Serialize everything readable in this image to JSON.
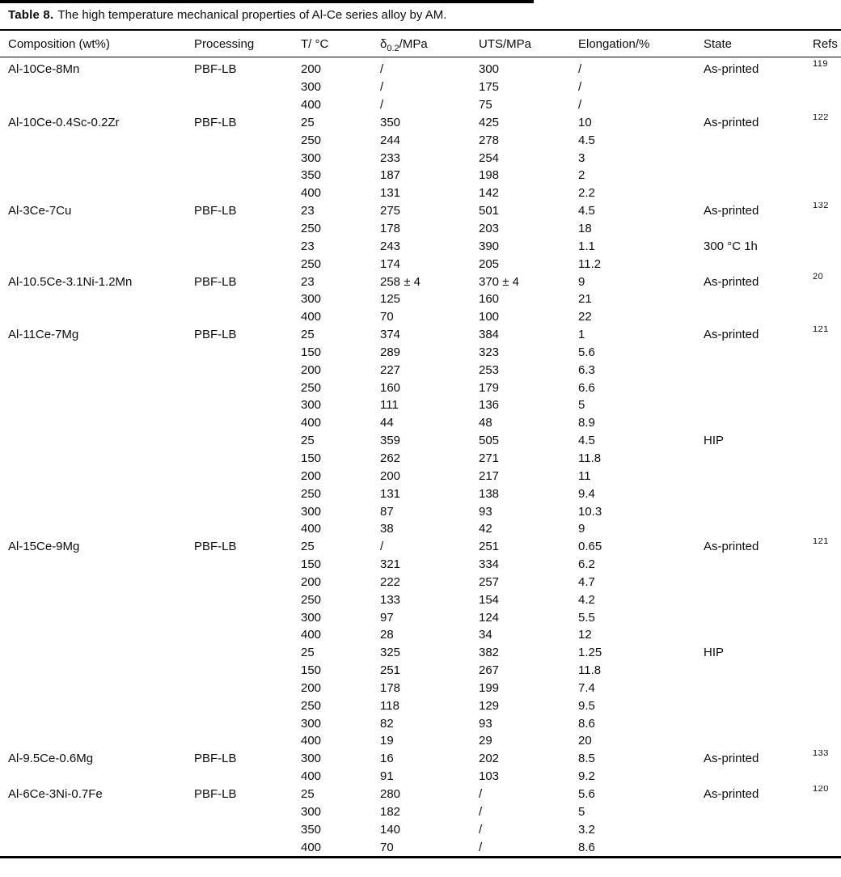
{
  "colors": {
    "background": "#ffffff",
    "text": "#0d0d0d",
    "rule": "#000000"
  },
  "caption": {
    "label": "Table 8.",
    "text": "The high temperature mechanical properties of Al-Ce series alloy by AM."
  },
  "columns": [
    {
      "label": "Composition (wt%)"
    },
    {
      "label": "Processing"
    },
    {
      "label": "T/ °C"
    },
    {
      "pre": "δ",
      "sub": "0.2",
      "post": "/MPa"
    },
    {
      "label": "UTS/MPa"
    },
    {
      "label": "Elongation/%"
    },
    {
      "label": "State"
    },
    {
      "label": "Refs"
    }
  ],
  "rows": [
    {
      "composition": "Al-10Ce-8Mn",
      "processing": "PBF-LB",
      "t": "200",
      "sigma": "/",
      "uts": "300",
      "elongation": "/",
      "state": "As-printed",
      "ref": "119"
    },
    {
      "composition": "",
      "processing": "",
      "t": "300",
      "sigma": "/",
      "uts": "175",
      "elongation": "/",
      "state": "",
      "ref": ""
    },
    {
      "composition": "",
      "processing": "",
      "t": "400",
      "sigma": "/",
      "uts": "75",
      "elongation": "/",
      "state": "",
      "ref": ""
    },
    {
      "composition": "Al-10Ce-0.4Sc-0.2Zr",
      "processing": "PBF-LB",
      "t": "25",
      "sigma": "350",
      "uts": "425",
      "elongation": "10",
      "state": "As-printed",
      "ref": "122"
    },
    {
      "composition": "",
      "processing": "",
      "t": "250",
      "sigma": "244",
      "uts": "278",
      "elongation": "4.5",
      "state": "",
      "ref": ""
    },
    {
      "composition": "",
      "processing": "",
      "t": "300",
      "sigma": "233",
      "uts": "254",
      "elongation": "3",
      "state": "",
      "ref": ""
    },
    {
      "composition": "",
      "processing": "",
      "t": "350",
      "sigma": "187",
      "uts": "198",
      "elongation": "2",
      "state": "",
      "ref": ""
    },
    {
      "composition": "",
      "processing": "",
      "t": "400",
      "sigma": "131",
      "uts": "142",
      "elongation": "2.2",
      "state": "",
      "ref": ""
    },
    {
      "composition": "Al-3Ce-7Cu",
      "processing": "PBF-LB",
      "t": "23",
      "sigma": "275",
      "uts": "501",
      "elongation": "4.5",
      "state": "As-printed",
      "ref": "132"
    },
    {
      "composition": "",
      "processing": "",
      "t": "250",
      "sigma": "178",
      "uts": "203",
      "elongation": "18",
      "state": "",
      "ref": ""
    },
    {
      "composition": "",
      "processing": "",
      "t": "23",
      "sigma": "243",
      "uts": "390",
      "elongation": "1.1",
      "state": "300 °C 1h",
      "ref": ""
    },
    {
      "composition": "",
      "processing": "",
      "t": "250",
      "sigma": "174",
      "uts": "205",
      "elongation": "11.2",
      "state": "",
      "ref": ""
    },
    {
      "composition": "Al-10.5Ce-3.1Ni-1.2Mn",
      "processing": "PBF-LB",
      "t": "23",
      "sigma": "258 ± 4",
      "uts": "370 ± 4",
      "elongation": "9",
      "state": "As-printed",
      "ref": "20"
    },
    {
      "composition": "",
      "processing": "",
      "t": "300",
      "sigma": "125",
      "uts": "160",
      "elongation": "21",
      "state": "",
      "ref": ""
    },
    {
      "composition": "",
      "processing": "",
      "t": "400",
      "sigma": "70",
      "uts": "100",
      "elongation": "22",
      "state": "",
      "ref": ""
    },
    {
      "composition": "Al-11Ce-7Mg",
      "processing": "PBF-LB",
      "t": "25",
      "sigma": "374",
      "uts": "384",
      "elongation": "1",
      "state": "As-printed",
      "ref": "121"
    },
    {
      "composition": "",
      "processing": "",
      "t": "150",
      "sigma": "289",
      "uts": "323",
      "elongation": "5.6",
      "state": "",
      "ref": ""
    },
    {
      "composition": "",
      "processing": "",
      "t": "200",
      "sigma": "227",
      "uts": "253",
      "elongation": "6.3",
      "state": "",
      "ref": ""
    },
    {
      "composition": "",
      "processing": "",
      "t": "250",
      "sigma": "160",
      "uts": "179",
      "elongation": "6.6",
      "state": "",
      "ref": ""
    },
    {
      "composition": "",
      "processing": "",
      "t": "300",
      "sigma": "111",
      "uts": "136",
      "elongation": "5",
      "state": "",
      "ref": ""
    },
    {
      "composition": "",
      "processing": "",
      "t": "400",
      "sigma": "44",
      "uts": "48",
      "elongation": "8.9",
      "state": "",
      "ref": ""
    },
    {
      "composition": "",
      "processing": "",
      "t": "25",
      "sigma": "359",
      "uts": "505",
      "elongation": "4.5",
      "state": "HIP",
      "ref": ""
    },
    {
      "composition": "",
      "processing": "",
      "t": "150",
      "sigma": "262",
      "uts": "271",
      "elongation": "11.8",
      "state": "",
      "ref": ""
    },
    {
      "composition": "",
      "processing": "",
      "t": "200",
      "sigma": "200",
      "uts": "217",
      "elongation": "11",
      "state": "",
      "ref": ""
    },
    {
      "composition": "",
      "processing": "",
      "t": "250",
      "sigma": "131",
      "uts": "138",
      "elongation": "9.4",
      "state": "",
      "ref": ""
    },
    {
      "composition": "",
      "processing": "",
      "t": "300",
      "sigma": "87",
      "uts": "93",
      "elongation": "10.3",
      "state": "",
      "ref": ""
    },
    {
      "composition": "",
      "processing": "",
      "t": "400",
      "sigma": "38",
      "uts": "42",
      "elongation": "9",
      "state": "",
      "ref": ""
    },
    {
      "composition": "Al-15Ce-9Mg",
      "processing": "PBF-LB",
      "t": "25",
      "sigma": "/",
      "uts": "251",
      "elongation": "0.65",
      "state": "As-printed",
      "ref": "121"
    },
    {
      "composition": "",
      "processing": "",
      "t": "150",
      "sigma": "321",
      "uts": "334",
      "elongation": "6.2",
      "state": "",
      "ref": ""
    },
    {
      "composition": "",
      "processing": "",
      "t": "200",
      "sigma": "222",
      "uts": "257",
      "elongation": "4.7",
      "state": "",
      "ref": ""
    },
    {
      "composition": "",
      "processing": "",
      "t": "250",
      "sigma": "133",
      "uts": "154",
      "elongation": "4.2",
      "state": "",
      "ref": ""
    },
    {
      "composition": "",
      "processing": "",
      "t": "300",
      "sigma": "97",
      "uts": "124",
      "elongation": "5.5",
      "state": "",
      "ref": ""
    },
    {
      "composition": "",
      "processing": "",
      "t": "400",
      "sigma": "28",
      "uts": "34",
      "elongation": "12",
      "state": "",
      "ref": ""
    },
    {
      "composition": "",
      "processing": "",
      "t": "25",
      "sigma": "325",
      "uts": "382",
      "elongation": "1.25",
      "state": "HIP",
      "ref": ""
    },
    {
      "composition": "",
      "processing": "",
      "t": "150",
      "sigma": "251",
      "uts": "267",
      "elongation": "11.8",
      "state": "",
      "ref": ""
    },
    {
      "composition": "",
      "processing": "",
      "t": "200",
      "sigma": "178",
      "uts": "199",
      "elongation": "7.4",
      "state": "",
      "ref": ""
    },
    {
      "composition": "",
      "processing": "",
      "t": "250",
      "sigma": "118",
      "uts": "129",
      "elongation": "9.5",
      "state": "",
      "ref": ""
    },
    {
      "composition": "",
      "processing": "",
      "t": "300",
      "sigma": "82",
      "uts": "93",
      "elongation": "8.6",
      "state": "",
      "ref": ""
    },
    {
      "composition": "",
      "processing": "",
      "t": "400",
      "sigma": "19",
      "uts": "29",
      "elongation": "20",
      "state": "",
      "ref": ""
    },
    {
      "composition": "Al-9.5Ce-0.6Mg",
      "processing": "PBF-LB",
      "t": "300",
      "sigma": "16",
      "uts": "202",
      "elongation": "8.5",
      "state": "As-printed",
      "ref": "133"
    },
    {
      "composition": "",
      "processing": "",
      "t": "400",
      "sigma": "91",
      "uts": "103",
      "elongation": "9.2",
      "state": "",
      "ref": ""
    },
    {
      "composition": "Al-6Ce-3Ni-0.7Fe",
      "processing": "PBF-LB",
      "t": "25",
      "sigma": "280",
      "uts": "/",
      "elongation": "5.6",
      "state": "As-printed",
      "ref": "120"
    },
    {
      "composition": "",
      "processing": "",
      "t": "300",
      "sigma": "182",
      "uts": "/",
      "elongation": "5",
      "state": "",
      "ref": ""
    },
    {
      "composition": "",
      "processing": "",
      "t": "350",
      "sigma": "140",
      "uts": "/",
      "elongation": "3.2",
      "state": "",
      "ref": ""
    },
    {
      "composition": "",
      "processing": "",
      "t": "400",
      "sigma": "70",
      "uts": "/",
      "elongation": "8.6",
      "state": "",
      "ref": ""
    }
  ]
}
